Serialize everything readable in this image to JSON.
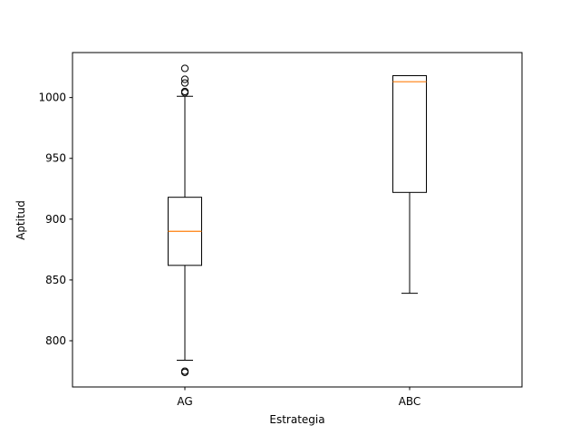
{
  "chart_data": {
    "type": "boxplot",
    "title": "",
    "xlabel": "Estrategia",
    "ylabel": "Aptitud",
    "categories": [
      "AG",
      "ABC"
    ],
    "ylim": [
      762,
      1037
    ],
    "yticks": [
      800,
      850,
      900,
      950,
      1000
    ],
    "grid": false,
    "colors": {
      "box": "#000000",
      "median": "#ff7f0e"
    },
    "boxes": [
      {
        "name": "AG",
        "whisker_low": 784,
        "q1": 862,
        "median": 890,
        "q3": 918,
        "whisker_high": 1001,
        "outliers": [
          774,
          775,
          1004,
          1005,
          1012,
          1015,
          1024
        ]
      },
      {
        "name": "ABC",
        "whisker_low": 839,
        "q1": 922,
        "median": 1013,
        "q3": 1018,
        "whisker_high": 1018,
        "outliers": []
      }
    ]
  }
}
